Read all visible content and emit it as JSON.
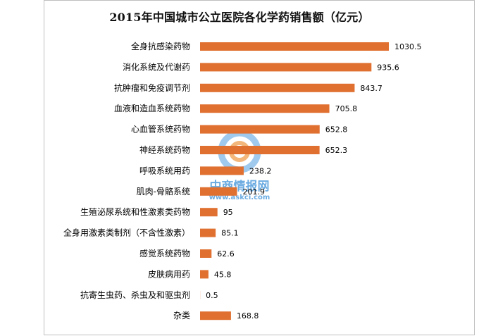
{
  "chart_data": {
    "type": "bar",
    "orientation": "horizontal",
    "title": "2015年中国城市公立医院各化学药销售额（亿元）",
    "categories": [
      "全身抗感染药物",
      "消化系统及代谢药",
      "抗肿瘤和免疫调节剂",
      "血液和造血系统药物",
      "心血管系统药物",
      "神经系统药物",
      "呼吸系统用药",
      "肌肉-骨骼系统",
      "生殖泌尿系统和性激素类药物",
      "全身用激素类制剂（不含性激素）",
      "感觉系统药物",
      "皮肤病用药",
      "抗寄生虫药、杀虫及和驱虫剂",
      "杂类"
    ],
    "values": [
      1030.5,
      935.6,
      843.7,
      705.8,
      652.8,
      652.3,
      238.2,
      201.9,
      95,
      85.1,
      62.6,
      45.8,
      0.5,
      168.8
    ],
    "value_labels": [
      "1030.5",
      "935.6",
      "843.7",
      "705.8",
      "652.8",
      "652.3",
      "238.2",
      "201.9",
      "95",
      "85.1",
      "62.6",
      "45.8",
      "0.5",
      "168.8"
    ],
    "xlim": [
      0,
      1100
    ],
    "bar_color": "#E07030",
    "grid": false,
    "legend": "none"
  },
  "watermark": {
    "brand": "中商情报网",
    "url": "www.askci.com",
    "colors": {
      "blue": "#3a8fd8",
      "orange": "#f0a050",
      "light_blue": "#7fb8e8"
    }
  }
}
